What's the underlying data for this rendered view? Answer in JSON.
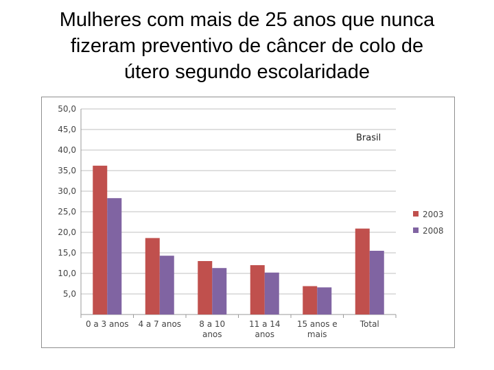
{
  "slide": {
    "title_lines": [
      "Mulheres com mais de 25 anos que nunca",
      "fizeram preventivo de câncer de colo de",
      "útero segundo escolaridade"
    ]
  },
  "chart_data": {
    "type": "bar",
    "annotation": "Brasil",
    "categories": [
      [
        "0 a 3 anos"
      ],
      [
        "4 a 7 anos"
      ],
      [
        "8 a 10",
        "anos"
      ],
      [
        "11 a 14",
        "anos"
      ],
      [
        "15 anos e",
        "mais"
      ],
      [
        "Total"
      ]
    ],
    "series": [
      {
        "name": "2003",
        "color": "#c0504d",
        "values": [
          36.2,
          18.6,
          13.0,
          12.0,
          6.9,
          20.9
        ]
      },
      {
        "name": "2008",
        "color": "#8064a2",
        "values": [
          28.3,
          14.3,
          11.3,
          10.2,
          6.6,
          15.5
        ]
      }
    ],
    "ylim": [
      0,
      50
    ],
    "yticks": [
      "5,0",
      "10,0",
      "15,0",
      "20,0",
      "25,0",
      "30,0",
      "35,0",
      "40,0",
      "45,0",
      "50,0"
    ],
    "ytick_values": [
      5,
      10,
      15,
      20,
      25,
      30,
      35,
      40,
      45,
      50
    ],
    "grid": true,
    "legend_position": "right"
  }
}
